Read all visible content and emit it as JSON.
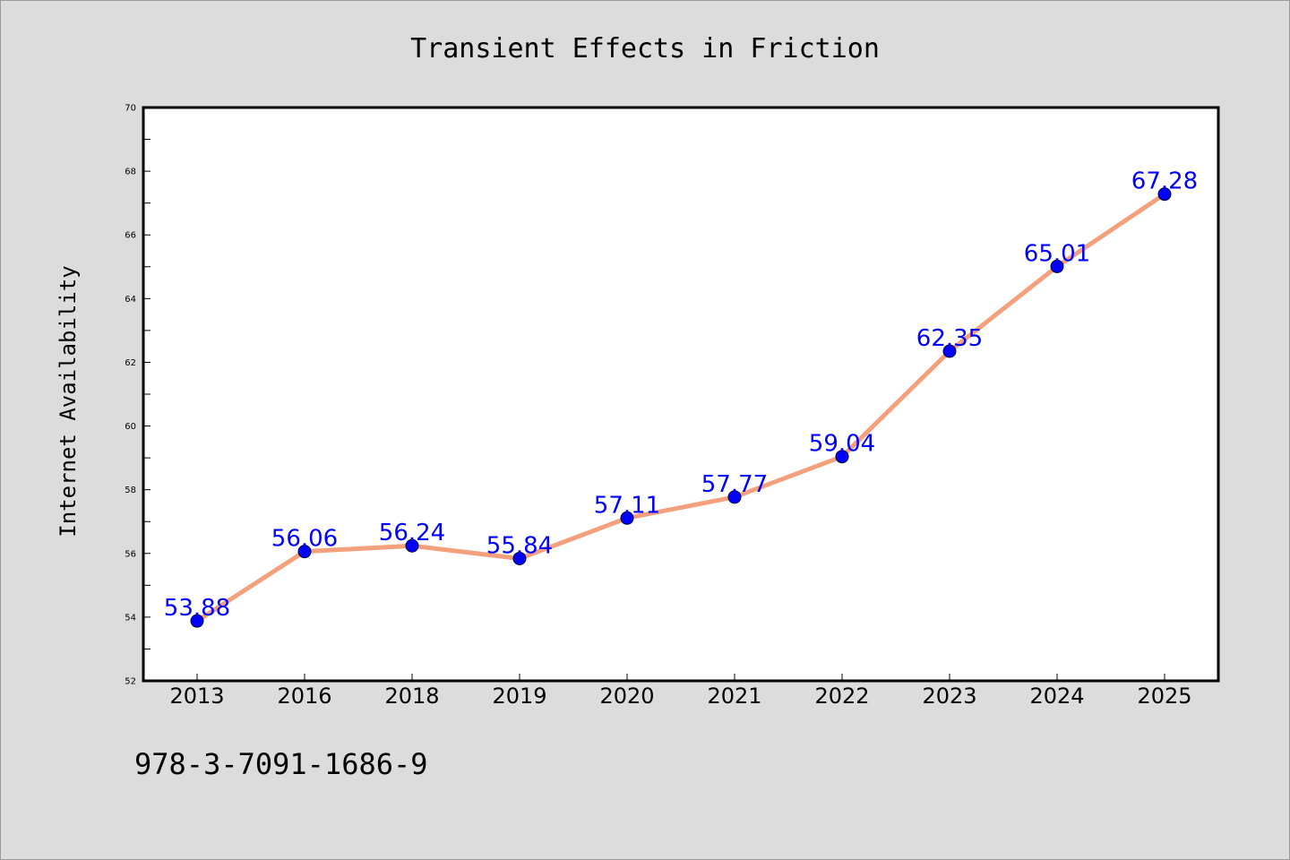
{
  "footer_code": "978-3-7091-1686-9",
  "colors": {
    "background": "#dcdcdc",
    "plot_area": "#ffffff",
    "line": "#f4a07c",
    "marker": "#0000ff",
    "data_label": "#0000ff"
  },
  "chart_data": {
    "type": "line",
    "title": "Transient Effects in Friction",
    "xlabel": "",
    "ylabel": "Internet Availability",
    "categories": [
      "2013",
      "2016",
      "2018",
      "2019",
      "2020",
      "2021",
      "2022",
      "2023",
      "2024",
      "2025"
    ],
    "series": [
      {
        "values": [
          53.88,
          56.06,
          56.24,
          55.84,
          57.11,
          57.77,
          59.04,
          62.35,
          65.01,
          67.28
        ],
        "labels": [
          "53.88",
          "56.06",
          "56.24",
          "55.84",
          "57.11",
          "57.77",
          "59.04",
          "62.35",
          "65.01",
          "67.28"
        ]
      }
    ],
    "ylim": [
      52,
      70
    ],
    "yticks": [
      "52",
      "54",
      "56",
      "58",
      "60",
      "62",
      "64",
      "66",
      "68",
      "70"
    ],
    "grid": false,
    "legend": "none"
  }
}
